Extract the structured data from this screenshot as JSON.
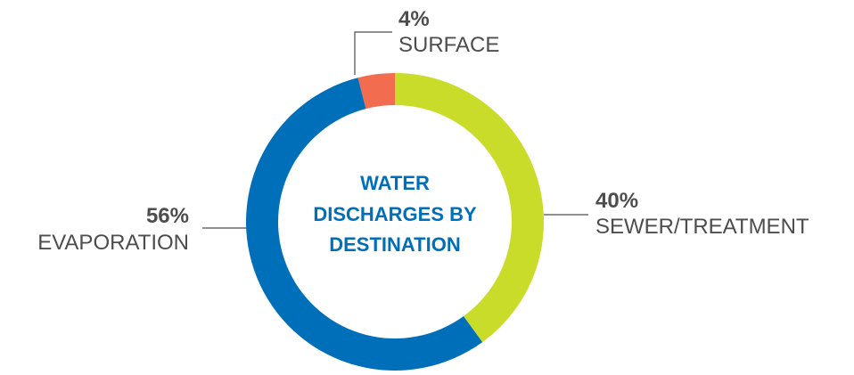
{
  "chart_data": {
    "type": "pie",
    "style": "donut",
    "title_lines": [
      "WATER",
      "DISCHARGES BY",
      "DESTINATION"
    ],
    "slices": [
      {
        "label": "SURFACE",
        "value": 4,
        "value_label": "4%",
        "color": "#f26d50"
      },
      {
        "label": "SEWER/TREATMENT",
        "value": 40,
        "value_label": "40%",
        "color": "#c9dc2a"
      },
      {
        "label": "EVAPORATION",
        "value": 56,
        "value_label": "56%",
        "color": "#006fba"
      }
    ],
    "title_color": "#006fba",
    "value_text_color": "#4d4d4d",
    "label_text_color": "#4d4d4d",
    "leader_color": "#4d4d4d"
  }
}
